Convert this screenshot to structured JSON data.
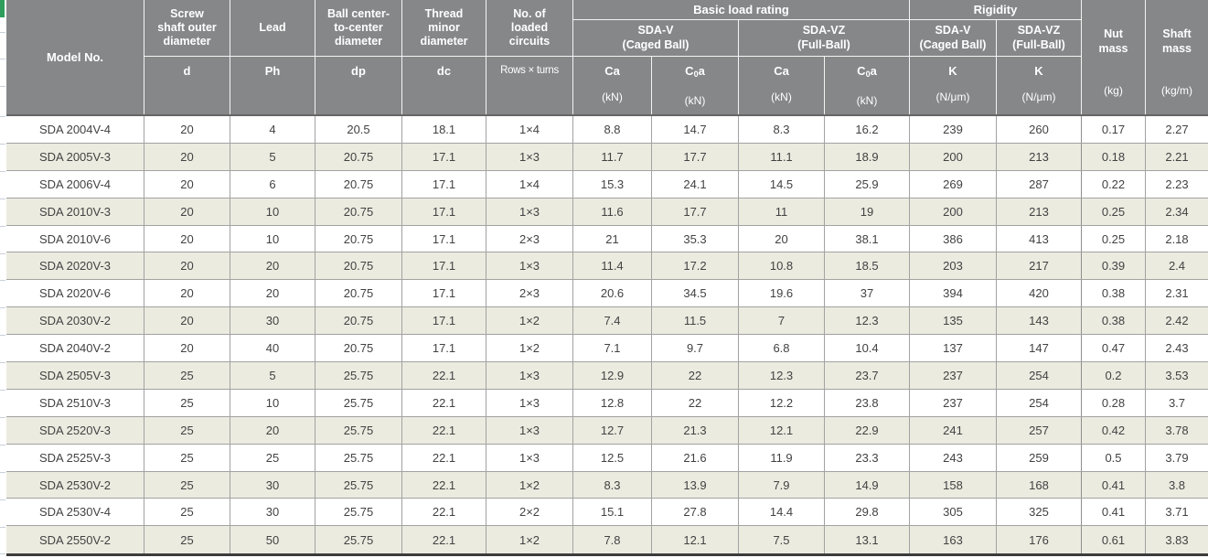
{
  "theme": {
    "header_bg": "#868789",
    "header_text": "#ffffff",
    "header_line": "#f4f4f2",
    "header_divider": "#666666",
    "row_alt": "#ecebe0",
    "body_line": "#a2a2a2",
    "table_bottom": "#3c3c3c",
    "text": "#424242",
    "edge_green": "#2e9e5c",
    "tick": "#c9d0da"
  },
  "table": {
    "column_keys": [
      "model_no",
      "screw_shaft_outer_diameter_d",
      "lead_ph",
      "ball_center_to_center_diameter_dp",
      "thread_minor_diameter_dc",
      "loaded_circuits_rows_x_turns",
      "basic_load_ca_sda_v_kn",
      "basic_load_c0a_sda_v_kn",
      "basic_load_ca_sda_vz_kn",
      "basic_load_c0a_sda_vz_kn",
      "rigidity_k_sda_v_n_um",
      "rigidity_k_sda_vz_n_um",
      "nut_mass_kg",
      "shaft_mass_kg_m"
    ],
    "header": {
      "model_label": "Model No.",
      "cols": {
        "d": {
          "label": [
            "Screw",
            "shaft outer",
            "diameter"
          ],
          "symbol": "d"
        },
        "ph": {
          "label": [
            "Lead"
          ],
          "symbol": "Ph"
        },
        "dp": {
          "label": [
            "Ball center-",
            "to-center",
            "diameter"
          ],
          "symbol": "dp"
        },
        "dc": {
          "label": [
            "Thread",
            "minor",
            "diameter"
          ],
          "symbol": "dc"
        },
        "circuits": {
          "label": [
            "No. of",
            "loaded",
            "circuits"
          ],
          "symbol": "Rows × turns"
        }
      },
      "load": {
        "title": "Basic load rating",
        "sub_v": [
          "SDA-V",
          "(Caged Ball)"
        ],
        "sub_vz": [
          "SDA-VZ",
          "(Full-Ball)"
        ],
        "ca": "Ca",
        "c0a": {
          "pre": "C",
          "sub": "0",
          "post": "a"
        },
        "unit_kn": "(kN)"
      },
      "rigidity": {
        "title": "Rigidity",
        "sub_v": [
          "SDA-V",
          "(Caged Ball)"
        ],
        "sub_vz": [
          "SDA-VZ",
          "(Full-Ball)"
        ],
        "k": "K",
        "unit_num": "(N/μm)"
      },
      "nut": {
        "label": [
          "Nut",
          "mass"
        ],
        "unit": "(kg)"
      },
      "shaft": {
        "label": [
          "Shaft",
          "mass"
        ],
        "unit": "(kg/m)"
      }
    },
    "rows": [
      [
        "SDA 2004V-4",
        "20",
        "4",
        "20.5",
        "18.1",
        "1×4",
        "8.8",
        "14.7",
        "8.3",
        "16.2",
        "239",
        "260",
        "0.17",
        "2.27"
      ],
      [
        "SDA 2005V-3",
        "20",
        "5",
        "20.75",
        "17.1",
        "1×3",
        "11.7",
        "17.7",
        "11.1",
        "18.9",
        "200",
        "213",
        "0.18",
        "2.21"
      ],
      [
        "SDA 2006V-4",
        "20",
        "6",
        "20.75",
        "17.1",
        "1×4",
        "15.3",
        "24.1",
        "14.5",
        "25.9",
        "269",
        "287",
        "0.22",
        "2.23"
      ],
      [
        "SDA 2010V-3",
        "20",
        "10",
        "20.75",
        "17.1",
        "1×3",
        "11.6",
        "17.7",
        "11",
        "19",
        "200",
        "213",
        "0.25",
        "2.34"
      ],
      [
        "SDA 2010V-6",
        "20",
        "10",
        "20.75",
        "17.1",
        "2×3",
        "21",
        "35.3",
        "20",
        "38.1",
        "386",
        "413",
        "0.25",
        "2.18"
      ],
      [
        "SDA 2020V-3",
        "20",
        "20",
        "20.75",
        "17.1",
        "1×3",
        "11.4",
        "17.2",
        "10.8",
        "18.5",
        "203",
        "217",
        "0.39",
        "2.4"
      ],
      [
        "SDA 2020V-6",
        "20",
        "20",
        "20.75",
        "17.1",
        "2×3",
        "20.6",
        "34.5",
        "19.6",
        "37",
        "394",
        "420",
        "0.38",
        "2.31"
      ],
      [
        "SDA 2030V-2",
        "20",
        "30",
        "20.75",
        "17.1",
        "1×2",
        "7.4",
        "11.5",
        "7",
        "12.3",
        "135",
        "143",
        "0.38",
        "2.42"
      ],
      [
        "SDA 2040V-2",
        "20",
        "40",
        "20.75",
        "17.1",
        "1×2",
        "7.1",
        "9.7",
        "6.8",
        "10.4",
        "137",
        "147",
        "0.47",
        "2.43"
      ],
      [
        "SDA 2505V-3",
        "25",
        "5",
        "25.75",
        "22.1",
        "1×3",
        "12.9",
        "22",
        "12.3",
        "23.7",
        "237",
        "254",
        "0.2",
        "3.53"
      ],
      [
        "SDA 2510V-3",
        "25",
        "10",
        "25.75",
        "22.1",
        "1×3",
        "12.8",
        "22",
        "12.2",
        "23.8",
        "237",
        "254",
        "0.28",
        "3.7"
      ],
      [
        "SDA 2520V-3",
        "25",
        "20",
        "25.75",
        "22.1",
        "1×3",
        "12.7",
        "21.3",
        "12.1",
        "22.9",
        "241",
        "257",
        "0.42",
        "3.78"
      ],
      [
        "SDA 2525V-3",
        "25",
        "25",
        "25.75",
        "22.1",
        "1×3",
        "12.5",
        "21.6",
        "11.9",
        "23.3",
        "243",
        "259",
        "0.5",
        "3.79"
      ],
      [
        "SDA 2530V-2",
        "25",
        "30",
        "25.75",
        "22.1",
        "1×2",
        "8.3",
        "13.9",
        "7.9",
        "14.9",
        "158",
        "168",
        "0.41",
        "3.8"
      ],
      [
        "SDA 2530V-4",
        "25",
        "30",
        "25.75",
        "22.1",
        "2×2",
        "15.1",
        "27.8",
        "14.4",
        "29.8",
        "305",
        "325",
        "0.41",
        "3.71"
      ],
      [
        "SDA 2550V-2",
        "25",
        "50",
        "25.75",
        "22.1",
        "1×2",
        "7.8",
        "12.1",
        "7.5",
        "13.1",
        "163",
        "176",
        "0.61",
        "3.83"
      ]
    ]
  }
}
